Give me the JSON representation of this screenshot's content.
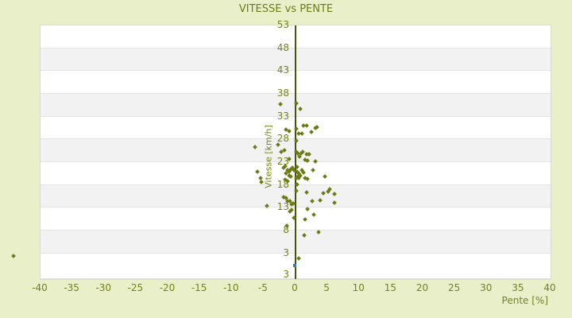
{
  "page": {
    "background_color": "#e9efc8",
    "accent_text_color": "#6c7c16"
  },
  "chart_data": {
    "type": "scatter",
    "title": "VITESSE vs PENTE",
    "xlabel": "Pente [%]",
    "ylabel": "Vitesse [km/h]",
    "xlim": [
      -40,
      40
    ],
    "ylim": [
      -2.6,
      53
    ],
    "x_ticks": [
      -40,
      -35,
      -30,
      -25,
      -20,
      -15,
      -10,
      -5,
      0,
      5,
      10,
      15,
      20,
      25,
      30,
      35,
      40
    ],
    "y_ticks": [
      53,
      48,
      43,
      38,
      33,
      28,
      23,
      18,
      13,
      8,
      3
    ],
    "y_axis_bottom_extra_label": "3",
    "grid": "alternating horizontal bands aligned to y ticks",
    "band_colors": [
      "#ffffff",
      "#f2f2f2"
    ],
    "band_line_color": "#e4e4e4",
    "zero_axis_color": "#46530a",
    "legend": "none",
    "series": [
      {
        "name": "vitesse-vs-pente",
        "marker": "diamond",
        "color": "#6d7a15",
        "points": [
          [
            -2.4,
            35.8
          ],
          [
            0.1,
            35.9
          ],
          [
            0.8,
            34.7
          ],
          [
            1.3,
            31.1
          ],
          [
            1.8,
            31.1
          ],
          [
            3.1,
            30.5
          ],
          [
            3.4,
            30.7
          ],
          [
            -1.5,
            30.2
          ],
          [
            -1.0,
            29.9
          ],
          [
            0.1,
            30.4
          ],
          [
            0.5,
            29.3
          ],
          [
            1.0,
            29.3
          ],
          [
            2.5,
            29.7
          ],
          [
            -6.4,
            26.4
          ],
          [
            0.1,
            27.8
          ],
          [
            -2.8,
            26.9
          ],
          [
            -2.3,
            25.3
          ],
          [
            -1.8,
            25.7
          ],
          [
            0.1,
            25.3
          ],
          [
            0.4,
            25.0
          ],
          [
            0.6,
            24.3
          ],
          [
            0.9,
            25.0
          ],
          [
            1.8,
            24.8
          ],
          [
            2.1,
            24.8
          ],
          [
            1.1,
            25.3
          ],
          [
            1.5,
            23.6
          ],
          [
            1.9,
            23.4
          ],
          [
            3.1,
            23.2
          ],
          [
            -1.0,
            23.8
          ],
          [
            -1.9,
            21.8
          ],
          [
            -1.6,
            22.2
          ],
          [
            -1.3,
            21.3
          ],
          [
            -1.0,
            21.0
          ],
          [
            -1.5,
            20.6
          ],
          [
            -0.8,
            21.5
          ],
          [
            -0.5,
            21.8
          ],
          [
            -0.3,
            21.3
          ],
          [
            -1.0,
            20.1
          ],
          [
            -0.8,
            19.9
          ],
          [
            -1.6,
            19.2
          ],
          [
            -1.3,
            18.9
          ],
          [
            0.3,
            21.0
          ],
          [
            0.5,
            20.6
          ],
          [
            0.8,
            20.1
          ],
          [
            1.0,
            21.3
          ],
          [
            0.5,
            19.6
          ],
          [
            0.3,
            22.0
          ],
          [
            1.3,
            20.8
          ],
          [
            2.8,
            21.3
          ],
          [
            0.4,
            19.9
          ],
          [
            0.1,
            19.6
          ],
          [
            1.5,
            19.6
          ],
          [
            1.9,
            19.4
          ],
          [
            4.6,
            19.8
          ],
          [
            0.3,
            18.2
          ],
          [
            -6.0,
            21.0
          ],
          [
            -5.5,
            19.6
          ],
          [
            -5.4,
            18.7
          ],
          [
            0.1,
            16.8
          ],
          [
            5.4,
            17.1
          ],
          [
            5.1,
            16.6
          ],
          [
            1.8,
            16.4
          ],
          [
            4.4,
            16.3
          ],
          [
            6.1,
            16.1
          ],
          [
            2.6,
            14.5
          ],
          [
            3.9,
            14.7
          ],
          [
            6.1,
            14.2
          ],
          [
            1.9,
            12.8
          ],
          [
            2.9,
            11.6
          ],
          [
            -4.5,
            13.5
          ],
          [
            -1.9,
            15.4
          ],
          [
            -1.5,
            15.1
          ],
          [
            -1.3,
            14.5
          ],
          [
            -0.9,
            14.4
          ],
          [
            -0.6,
            13.7
          ],
          [
            -0.4,
            14.0
          ],
          [
            -0.6,
            12.6
          ],
          [
            -0.9,
            12.3
          ],
          [
            -0.3,
            10.9
          ],
          [
            -1.4,
            9.1
          ],
          [
            1.5,
            10.4
          ],
          [
            1.4,
            6.9
          ],
          [
            3.6,
            7.6
          ],
          [
            0.5,
            2.0
          ]
        ]
      },
      {
        "name": "highlight-point",
        "marker": "square",
        "color": "#3a7fa6",
        "points": [
          [
            -0.1,
            0.3
          ]
        ]
      }
    ],
    "offplot_point": {
      "pente": -44.1,
      "vitesse": 2.4
    }
  }
}
